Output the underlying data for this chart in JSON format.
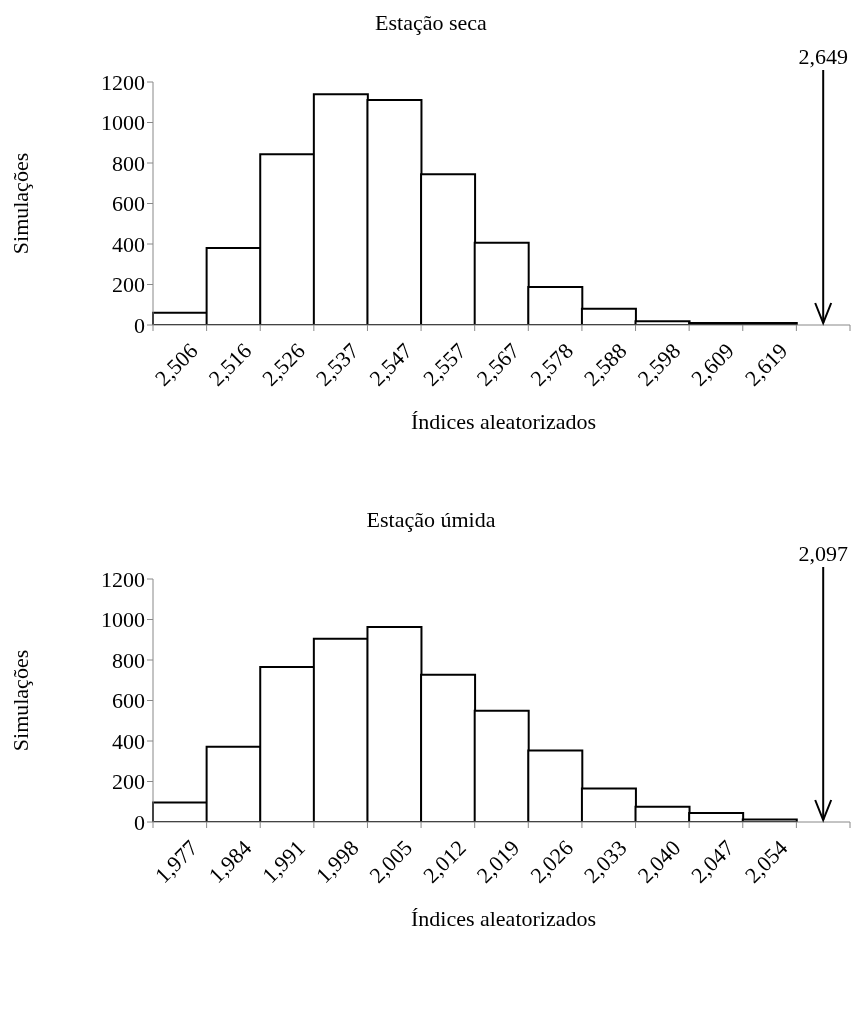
{
  "chart_data": [
    {
      "type": "bar",
      "title": "Estação seca",
      "xlabel": "Índices aleatorizados",
      "ylabel": "Simulações",
      "categories": [
        "2,506",
        "2,516",
        "2,526",
        "2,537",
        "2,547",
        "2,557",
        "2,567",
        "2,578",
        "2,588",
        "2,598",
        "2,609",
        "2,619",
        null
      ],
      "series": [
        {
          "color": "#ffffff",
          "values": [
            60,
            380,
            843,
            1140,
            1111,
            744,
            406,
            188,
            80,
            19,
            10,
            10,
            null
          ]
        }
      ],
      "ylim": [
        0,
        1200
      ],
      "yticks": [
        0,
        200,
        400,
        600,
        800,
        1000,
        1200
      ],
      "grid": false,
      "legend": false,
      "annotations": [
        "2,649"
      ]
    },
    {
      "type": "bar",
      "title": "Estação úmida",
      "xlabel": "Índices aleatorizados",
      "ylabel": "Simulações",
      "categories": [
        "1,977",
        "1,984",
        "1,991",
        "1,998",
        "2,005",
        "2,012",
        "2,019",
        "2,026",
        "2,033",
        "2,040",
        "2,047",
        "2,054",
        null
      ],
      "series": [
        {
          "color": "#ffffff",
          "values": [
            96,
            372,
            766,
            905,
            963,
            727,
            550,
            353,
            166,
            75,
            45,
            12,
            null
          ]
        }
      ],
      "ylim": [
        0,
        1200
      ],
      "yticks": [
        0,
        200,
        400,
        600,
        800,
        1000,
        1200
      ],
      "grid": false,
      "legend": false,
      "annotations": [
        "2,097"
      ]
    }
  ]
}
